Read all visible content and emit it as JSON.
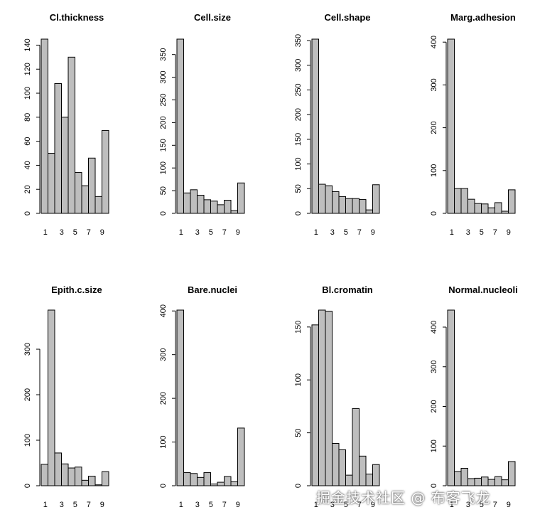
{
  "chart_data": [
    {
      "type": "bar",
      "title": "Cl.thickness",
      "categories": [
        "1",
        "2",
        "3",
        "4",
        "5",
        "6",
        "7",
        "8",
        "9",
        "10"
      ],
      "x_tick_labels": [
        "1",
        "3",
        "5",
        "7",
        "9"
      ],
      "values": [
        145,
        50,
        108,
        80,
        130,
        34,
        23,
        46,
        14,
        69
      ],
      "ylim": [
        0,
        145
      ],
      "y_ticks": [
        0,
        20,
        40,
        60,
        80,
        100,
        120,
        140
      ]
    },
    {
      "type": "bar",
      "title": "Cell.size",
      "categories": [
        "1",
        "2",
        "3",
        "4",
        "5",
        "6",
        "7",
        "8",
        "9",
        "10"
      ],
      "x_tick_labels": [
        "1",
        "3",
        "5",
        "7",
        "9"
      ],
      "values": [
        384,
        45,
        52,
        40,
        30,
        27,
        19,
        29,
        6,
        67
      ],
      "ylim": [
        0,
        384
      ],
      "y_ticks": [
        0,
        50,
        100,
        150,
        200,
        250,
        300,
        350
      ]
    },
    {
      "type": "bar",
      "title": "Cell.shape",
      "categories": [
        "1",
        "2",
        "3",
        "4",
        "5",
        "6",
        "7",
        "8",
        "9",
        "10"
      ],
      "x_tick_labels": [
        "1",
        "3",
        "5",
        "7",
        "9"
      ],
      "values": [
        353,
        59,
        56,
        44,
        34,
        30,
        30,
        28,
        7,
        58
      ],
      "ylim": [
        0,
        353
      ],
      "y_ticks": [
        0,
        50,
        100,
        150,
        200,
        250,
        300,
        350
      ]
    },
    {
      "type": "bar",
      "title": "Marg.adhesion",
      "categories": [
        "1",
        "2",
        "3",
        "4",
        "5",
        "6",
        "7",
        "8",
        "9",
        "10"
      ],
      "x_tick_labels": [
        "1",
        "3",
        "5",
        "7",
        "9"
      ],
      "values": [
        407,
        58,
        58,
        33,
        23,
        22,
        13,
        25,
        5,
        55
      ],
      "ylim": [
        0,
        407
      ],
      "y_ticks": [
        0,
        100,
        200,
        300,
        400
      ]
    },
    {
      "type": "bar",
      "title": "Epith.c.size",
      "categories": [
        "1",
        "2",
        "3",
        "4",
        "5",
        "6",
        "7",
        "8",
        "9",
        "10"
      ],
      "x_tick_labels": [
        "1",
        "3",
        "5",
        "7",
        "9"
      ],
      "values": [
        47,
        386,
        72,
        48,
        39,
        41,
        12,
        21,
        2,
        31
      ],
      "ylim": [
        0,
        386
      ],
      "y_ticks": [
        0,
        100,
        200,
        300
      ]
    },
    {
      "type": "bar",
      "title": "Bare.nuclei",
      "categories": [
        "1",
        "2",
        "3",
        "4",
        "5",
        "6",
        "7",
        "8",
        "9",
        "10"
      ],
      "x_tick_labels": [
        "1",
        "3",
        "5",
        "7",
        "9"
      ],
      "values": [
        402,
        30,
        28,
        19,
        30,
        4,
        8,
        21,
        9,
        132
      ],
      "ylim": [
        0,
        402
      ],
      "y_ticks": [
        0,
        100,
        200,
        300,
        400
      ]
    },
    {
      "type": "bar",
      "title": "Bl.cromatin",
      "categories": [
        "1",
        "2",
        "3",
        "4",
        "5",
        "6",
        "7",
        "8",
        "9",
        "10"
      ],
      "x_tick_labels": [
        "1",
        "3",
        "5",
        "7",
        "9"
      ],
      "values": [
        152,
        166,
        165,
        40,
        34,
        10,
        73,
        28,
        11,
        20
      ],
      "ylim": [
        0,
        166
      ],
      "y_ticks": [
        0,
        50,
        100,
        150
      ]
    },
    {
      "type": "bar",
      "title": "Normal.nucleoli",
      "categories": [
        "1",
        "2",
        "3",
        "4",
        "5",
        "6",
        "7",
        "8",
        "9",
        "10"
      ],
      "x_tick_labels": [
        "1",
        "3",
        "5",
        "7",
        "9"
      ],
      "values": [
        443,
        36,
        44,
        18,
        19,
        22,
        16,
        23,
        15,
        61
      ],
      "ylim": [
        0,
        443
      ],
      "y_ticks": [
        0,
        100,
        200,
        300,
        400
      ]
    }
  ],
  "watermark": "掘金技术社区 @ 布客飞龙"
}
